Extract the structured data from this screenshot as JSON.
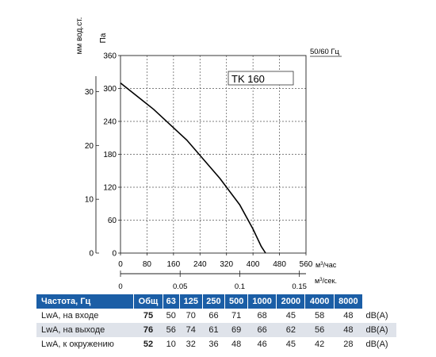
{
  "chart_data": {
    "type": "line",
    "left_axis_label": "мм вод.ст.",
    "left_axis_ticks": [
      "0",
      "10",
      "20",
      "30"
    ],
    "y_axis_label": "Па",
    "y_ticks": [
      "0",
      "60",
      "120",
      "180",
      "240",
      "300",
      "360"
    ],
    "ylim": [
      0,
      360
    ],
    "frequency_label": "50/60 Гц",
    "model_label": "TK 160",
    "x_ticks": [
      "0",
      "80",
      "160",
      "240",
      "320",
      "400",
      "480",
      "560"
    ],
    "xlim": [
      0,
      560
    ],
    "x_unit_main": "м",
    "x_unit_sup": "3",
    "x_unit_rest": "/час",
    "x2_ticks": [
      "0",
      "0.05",
      "0.1",
      "0.15"
    ],
    "x2_unit_main": "м",
    "x2_unit_sup": "3",
    "x2_unit_rest": "/сек.",
    "grid": true,
    "series": [
      {
        "x": [
          0,
          100,
          200,
          300,
          360,
          400,
          425,
          438
        ],
        "y": [
          310,
          262,
          206,
          136,
          88,
          44,
          12,
          0
        ]
      }
    ]
  },
  "table": {
    "header": [
      "Частота, Гц",
      "Общ",
      "63",
      "125",
      "250",
      "500",
      "1000",
      "2000",
      "4000",
      "8000",
      ""
    ],
    "rows": [
      {
        "label": "LwA, на входе",
        "values": [
          "75",
          "50",
          "70",
          "66",
          "71",
          "68",
          "45",
          "58",
          "48"
        ],
        "unit": "dB(A)"
      },
      {
        "label": "LwA, на выходе",
        "values": [
          "76",
          "56",
          "74",
          "61",
          "69",
          "66",
          "62",
          "56",
          "48"
        ],
        "unit": "dB(A)"
      },
      {
        "label": "LwA, к окружению",
        "values": [
          "52",
          "10",
          "32",
          "36",
          "48",
          "46",
          "45",
          "42",
          "28"
        ],
        "unit": "dB(A)"
      }
    ]
  }
}
